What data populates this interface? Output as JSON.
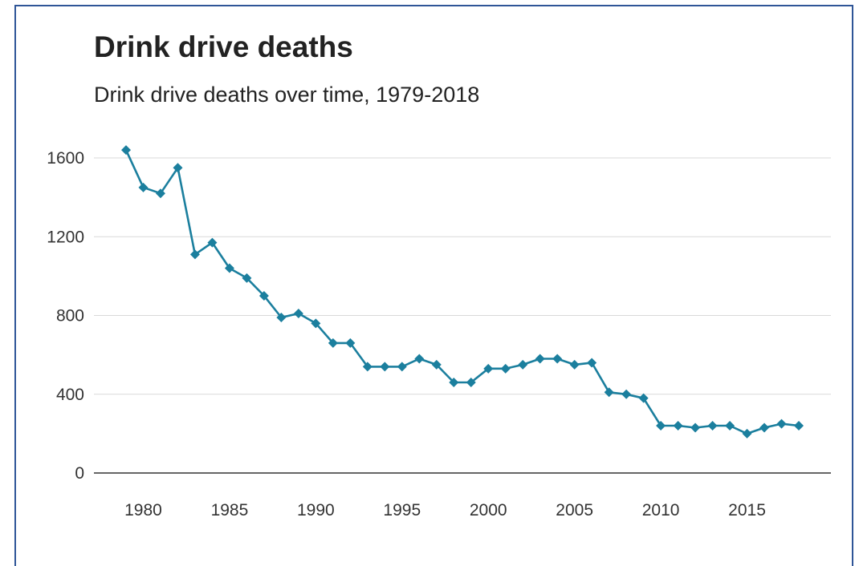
{
  "chart_data": {
    "type": "line",
    "title": "Drink drive deaths",
    "subtitle": "Drink drive deaths over time, 1979-2018",
    "xlabel": "",
    "ylabel": "",
    "xlim": [
      1979,
      2018
    ],
    "ylim": [
      0,
      1600
    ],
    "x_ticks": [
      "1980",
      "1985",
      "1990",
      "1995",
      "2000",
      "2005",
      "2010",
      "2015"
    ],
    "y_ticks": [
      "0",
      "400",
      "800",
      "1200",
      "1600"
    ],
    "grid": true,
    "series": [
      {
        "color": "#1b7f9e",
        "marker": "diamond",
        "x": [
          1979,
          1980,
          1981,
          1982,
          1983,
          1984,
          1985,
          1986,
          1987,
          1988,
          1989,
          1990,
          1991,
          1992,
          1993,
          1994,
          1995,
          1996,
          1997,
          1998,
          1999,
          2000,
          2001,
          2002,
          2003,
          2004,
          2005,
          2006,
          2007,
          2008,
          2009,
          2010,
          2011,
          2012,
          2013,
          2014,
          2015,
          2016,
          2017,
          2018
        ],
        "values": [
          1640,
          1450,
          1420,
          1550,
          1110,
          1170,
          1040,
          990,
          900,
          790,
          810,
          760,
          660,
          660,
          540,
          540,
          540,
          580,
          550,
          460,
          460,
          530,
          530,
          550,
          580,
          580,
          550,
          560,
          410,
          400,
          380,
          240,
          240,
          230,
          240,
          240,
          200,
          230,
          250,
          240
        ]
      }
    ]
  }
}
